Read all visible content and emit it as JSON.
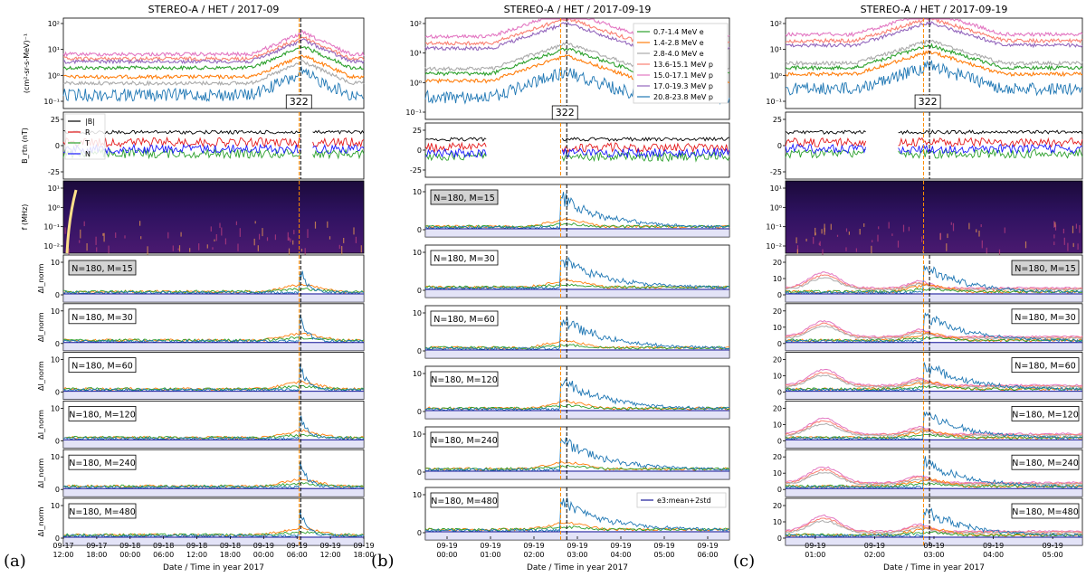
{
  "figure": {
    "panel_letters": [
      "(a)",
      "(b)",
      "(c)"
    ]
  },
  "colors": {
    "green": "#2ca02c",
    "orange": "#ff7f0e",
    "gray": "#aaaaaa",
    "salmon": "#fa8072",
    "pink": "#e377c2",
    "purple": "#9467bd",
    "blue": "#1f77b4",
    "black": "#000000",
    "red": "#e41a1c",
    "mag_green": "#2ca02c",
    "mag_blue": "#1a1aff",
    "band": "#c8c8f0",
    "navy": "#1a1a9a",
    "vline_orange": "#ff8c00",
    "vline_black": "#000000"
  },
  "chart_data": [
    {
      "id": "a",
      "type": "line",
      "title": "STEREO-A / HET / 2017-09",
      "xlabel": "Date / Time in year 2017",
      "xticks": [
        "09-17\n12:00",
        "09-17\n18:00",
        "09-18\n00:00",
        "09-18\n06:00",
        "09-18\n12:00",
        "09-18\n18:00",
        "09-19\n00:00",
        "09-19\n06:00",
        "09-19\n12:00",
        "09-19\n18:00"
      ],
      "flux": {
        "ylabel": "(cm²-sr-s-MeV)⁻¹",
        "yticks": [
          "10²",
          "10¹",
          "10⁰",
          "10⁻¹"
        ],
        "annotation": "322",
        "series_colors": [
          "green",
          "orange",
          "gray",
          "salmon",
          "pink",
          "purple",
          "blue"
        ]
      },
      "mag": {
        "ylabel": "B_rtn (nT)",
        "yticks": [
          "25",
          "0",
          "-25"
        ],
        "legend": [
          "|B|",
          "R",
          "T",
          "N"
        ],
        "gap": [
          0.79,
          0.83
        ]
      },
      "radio": {
        "ylabel": "f (MHz)",
        "yticks": [
          "10¹",
          "10⁰",
          "10⁻¹",
          "10⁻²"
        ]
      },
      "deltas": {
        "ylabel": "ΔI_norm",
        "yticks": [
          "10",
          "0"
        ],
        "labels": [
          "N=180, M=15",
          "N=180, M=30",
          "N=180, M=60",
          "N=180, M=120",
          "N=180, M=240",
          "N=180, M=480"
        ],
        "highlight": 0
      },
      "events": {
        "orange": 0.785,
        "black": 0.79
      }
    },
    {
      "id": "b",
      "type": "line",
      "title": "STEREO-A / HET / 2017-09-19",
      "xlabel": "Date / Time in year 2017",
      "xticks": [
        "09-19\n00:00",
        "09-19\n01:00",
        "09-19\n02:00",
        "09-19\n03:00",
        "09-19\n04:00",
        "09-19\n05:00",
        "09-19\n06:00"
      ],
      "flux": {
        "yticks": [
          "10²",
          "10¹",
          "10⁰",
          "10⁻¹"
        ],
        "annotation": "322",
        "legend": [
          "0.7-1.4 MeV e",
          "1.4-2.8 MeV e",
          "2.8-4.0 MeV e",
          "13.6-15.1 MeV p",
          "15.0-17.1 MeV p",
          "17.0-19.3 MeV p",
          "20.8-23.8 MeV p"
        ],
        "series_colors": [
          "green",
          "orange",
          "gray",
          "salmon",
          "pink",
          "purple",
          "blue"
        ]
      },
      "mag": {
        "yticks": [
          "25",
          "0",
          "-25"
        ],
        "gap": [
          0.2,
          0.45
        ]
      },
      "deltas": {
        "yticks": [
          "10",
          "0"
        ],
        "labels": [
          "N=180, M=15",
          "N=180, M=30",
          "N=180, M=60",
          "N=180, M=120",
          "N=180, M=240",
          "N=180, M=480"
        ],
        "highlight": 0,
        "legend_last": "e3:mean+2std"
      },
      "events": {
        "orange": 0.445,
        "black": 0.465
      }
    },
    {
      "id": "c",
      "type": "line",
      "title": "STEREO-A / HET / 2017-09-19",
      "xlabel": "Date / Time in year 2017",
      "xticks": [
        "09-19\n01:00",
        "09-19\n02:00",
        "09-19\n03:00",
        "09-19\n04:00",
        "09-19\n05:00"
      ],
      "flux": {
        "yticks": [
          "10²",
          "10¹",
          "10⁰",
          "10⁻¹"
        ],
        "annotation": "322",
        "series_colors": [
          "green",
          "orange",
          "gray",
          "salmon",
          "pink",
          "purple",
          "blue"
        ]
      },
      "mag": {
        "yticks": [
          "25",
          "0",
          "-25"
        ],
        "gap": [
          0.27,
          0.38
        ]
      },
      "radio": {
        "yticks": [
          "10¹",
          "10⁰",
          "10⁻¹",
          "10⁻²"
        ]
      },
      "deltas": {
        "yticks": [
          "20",
          "10",
          "0"
        ],
        "labels": [
          "N=180, M=15",
          "N=180, M=30",
          "N=180, M=60",
          "N=180, M=120",
          "N=180, M=240",
          "N=180, M=480"
        ],
        "highlight": 0
      },
      "events": {
        "orange": 0.465,
        "black": 0.485
      }
    }
  ]
}
